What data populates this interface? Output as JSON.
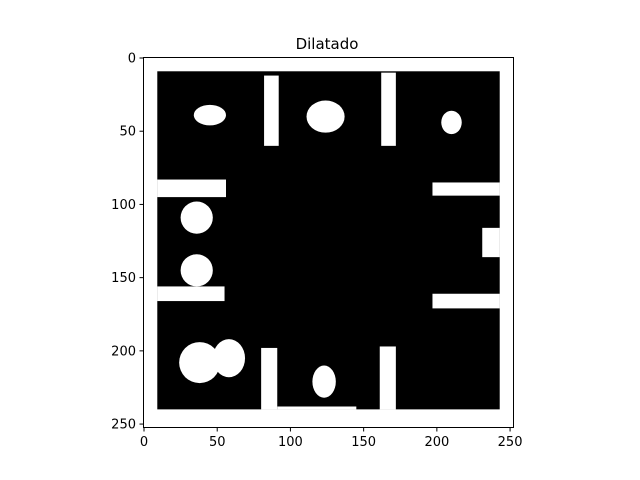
{
  "chart_data": {
    "type": "heatmap",
    "title": "Dilatado",
    "xlabel": "",
    "ylabel": "",
    "xlim": [
      0,
      252
    ],
    "ylim": [
      252,
      0
    ],
    "grid": false,
    "colormap": "gray",
    "background_value": "white",
    "xticks": [
      0,
      50,
      100,
      150,
      200,
      250
    ],
    "yticks": [
      0,
      50,
      100,
      150,
      200,
      250
    ],
    "black_region": {
      "x0": 9,
      "y0": 9,
      "x1": 243,
      "y1": 240
    },
    "white_rects": [
      {
        "x0": 0,
        "y0": 0,
        "x1": 252,
        "y1": 9
      },
      {
        "x0": 0,
        "y0": 0,
        "x1": 9,
        "y1": 252
      },
      {
        "x0": 243,
        "y0": 0,
        "x1": 252,
        "y1": 252
      },
      {
        "x0": 0,
        "y0": 240,
        "x1": 252,
        "y1": 252
      },
      {
        "x0": 250,
        "y0": 9,
        "x1": 252,
        "y1": 240
      },
      {
        "x0": 82,
        "y0": 12,
        "x1": 92,
        "y1": 60
      },
      {
        "x0": 162,
        "y0": 10,
        "x1": 172,
        "y1": 60
      },
      {
        "x0": 9,
        "y0": 83,
        "x1": 56,
        "y1": 95
      },
      {
        "x0": 9,
        "y0": 156,
        "x1": 55,
        "y1": 166
      },
      {
        "x0": 197,
        "y0": 85,
        "x1": 243,
        "y1": 94
      },
      {
        "x0": 197,
        "y0": 161,
        "x1": 243,
        "y1": 171
      },
      {
        "x0": 231,
        "y0": 116,
        "x1": 243,
        "y1": 136
      },
      {
        "x0": 80,
        "y0": 198,
        "x1": 91,
        "y1": 240
      },
      {
        "x0": 161,
        "y0": 197,
        "x1": 172,
        "y1": 240
      },
      {
        "x0": 91,
        "y0": 238,
        "x1": 145,
        "y1": 240
      }
    ],
    "white_blobs": [
      {
        "cx": 45,
        "cy": 39,
        "rx": 11,
        "ry": 7
      },
      {
        "cx": 124,
        "cy": 40,
        "rx": 13,
        "ry": 11
      },
      {
        "cx": 210,
        "cy": 44,
        "rx": 7,
        "ry": 8
      },
      {
        "cx": 36,
        "cy": 109,
        "rx": 11,
        "ry": 11
      },
      {
        "cx": 36,
        "cy": 145,
        "rx": 11,
        "ry": 11
      },
      {
        "cx": 38,
        "cy": 208,
        "rx": 14,
        "ry": 14
      },
      {
        "cx": 58,
        "cy": 205,
        "rx": 11,
        "ry": 13
      },
      {
        "cx": 123,
        "cy": 221,
        "rx": 8,
        "ry": 11
      }
    ]
  }
}
